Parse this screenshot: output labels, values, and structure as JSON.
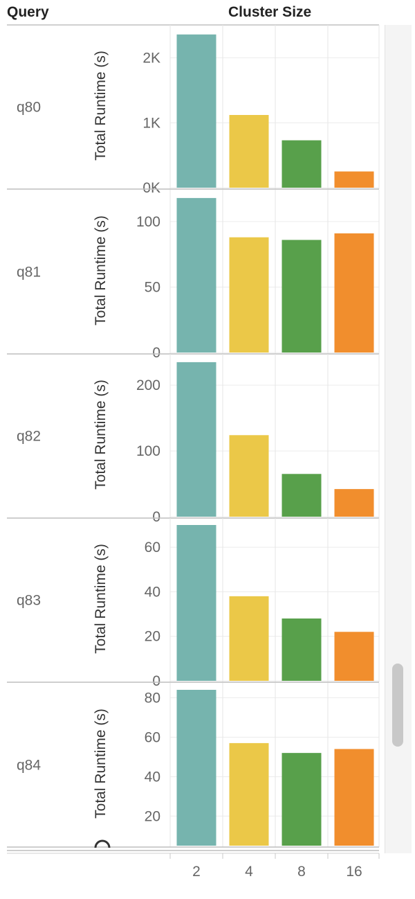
{
  "header": {
    "query_label": "Query",
    "cluster_label": "Cluster Size"
  },
  "colors": {
    "2": "#76b4ae",
    "4": "#ebc848",
    "8": "#58a04b",
    "16": "#f18e2d"
  },
  "chart_data": {
    "type": "bar",
    "categories": [
      "2",
      "4",
      "8",
      "16"
    ],
    "xlabel": "",
    "ylabel": "Total Runtime (s)",
    "grid": true,
    "legend": "none",
    "panels": [
      {
        "query": "q80",
        "ylim": [
          0,
          2400
        ],
        "yticks": [
          0,
          1000,
          2000
        ],
        "ytick_labels": [
          "0K",
          "1K",
          "2K"
        ],
        "values": [
          2360,
          1120,
          730,
          250
        ]
      },
      {
        "query": "q81",
        "ylim": [
          0,
          119
        ],
        "yticks": [
          0,
          50,
          100
        ],
        "ytick_labels": [
          "0",
          "50",
          "100"
        ],
        "values": [
          118,
          88,
          86,
          91
        ]
      },
      {
        "query": "q82",
        "ylim": [
          0,
          237
        ],
        "yticks": [
          0,
          100,
          200
        ],
        "ytick_labels": [
          "0",
          "100",
          "200"
        ],
        "values": [
          235,
          124,
          65,
          42
        ]
      },
      {
        "query": "q83",
        "ylim": [
          0,
          70
        ],
        "yticks": [
          0,
          20,
          40,
          60
        ],
        "ytick_labels": [
          "0",
          "20",
          "40",
          "60"
        ],
        "values": [
          70,
          38,
          28,
          22
        ]
      },
      {
        "query": "q84",
        "ylim": [
          5,
          84
        ],
        "yticks": [
          20,
          40,
          60,
          80
        ],
        "ytick_labels": [
          "20",
          "40",
          "60",
          "80"
        ],
        "values": [
          84,
          57,
          52,
          54
        ]
      }
    ]
  }
}
